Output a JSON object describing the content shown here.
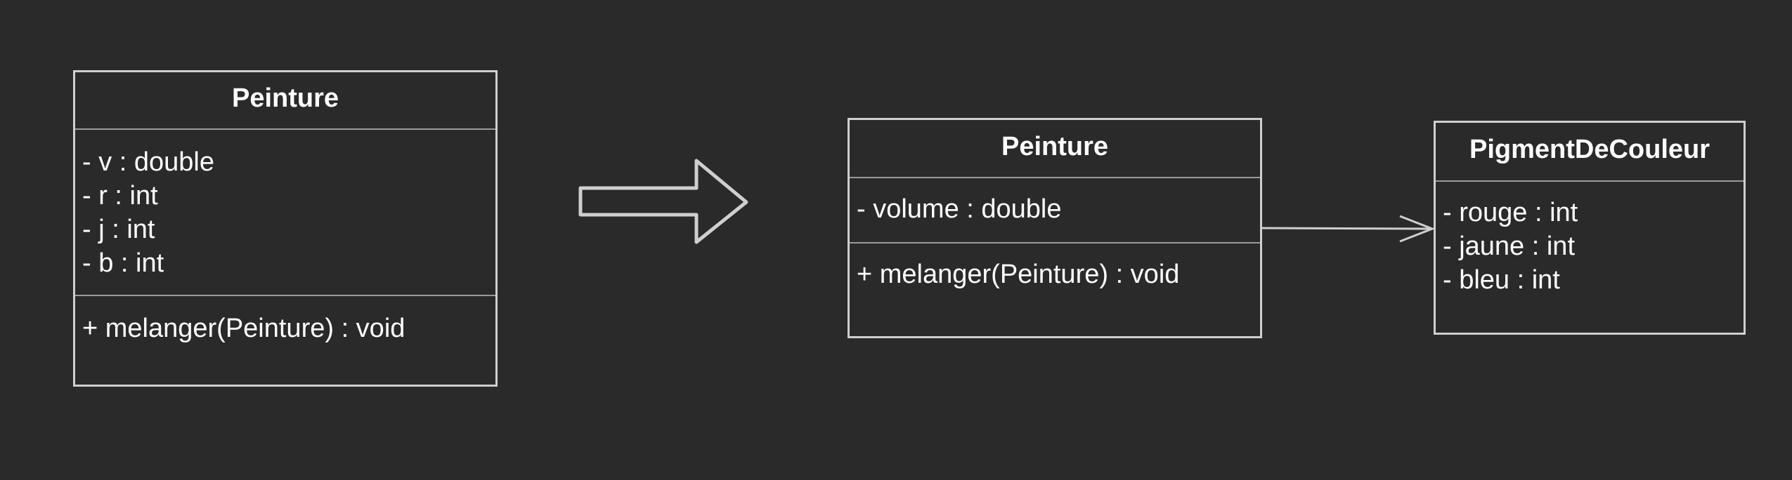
{
  "before": {
    "class_name": "Peinture",
    "attributes": [
      "- v : double",
      "- r : int",
      "- j : int",
      "- b : int"
    ],
    "operations": [
      "+ melanger(Peinture) : void"
    ]
  },
  "after": {
    "peinture": {
      "class_name": "Peinture",
      "attributes": [
        "- volume : double"
      ],
      "operations": [
        "+ melanger(Peinture) : void"
      ]
    },
    "pigment": {
      "class_name": "PigmentDeCouleur",
      "attributes": [
        "- rouge : int",
        "- jaune : int",
        "- bleu : int"
      ],
      "operations": []
    },
    "association": {
      "from": "Peinture",
      "to": "PigmentDeCouleur",
      "arrow": "open"
    }
  },
  "transform_arrow": {
    "icon": "right-arrow-outline-icon",
    "direction": "right"
  },
  "colors": {
    "background": "#2a2a2a",
    "stroke": "#cfcfcf",
    "divider": "#9a9a9a",
    "text": "#ffffff"
  }
}
